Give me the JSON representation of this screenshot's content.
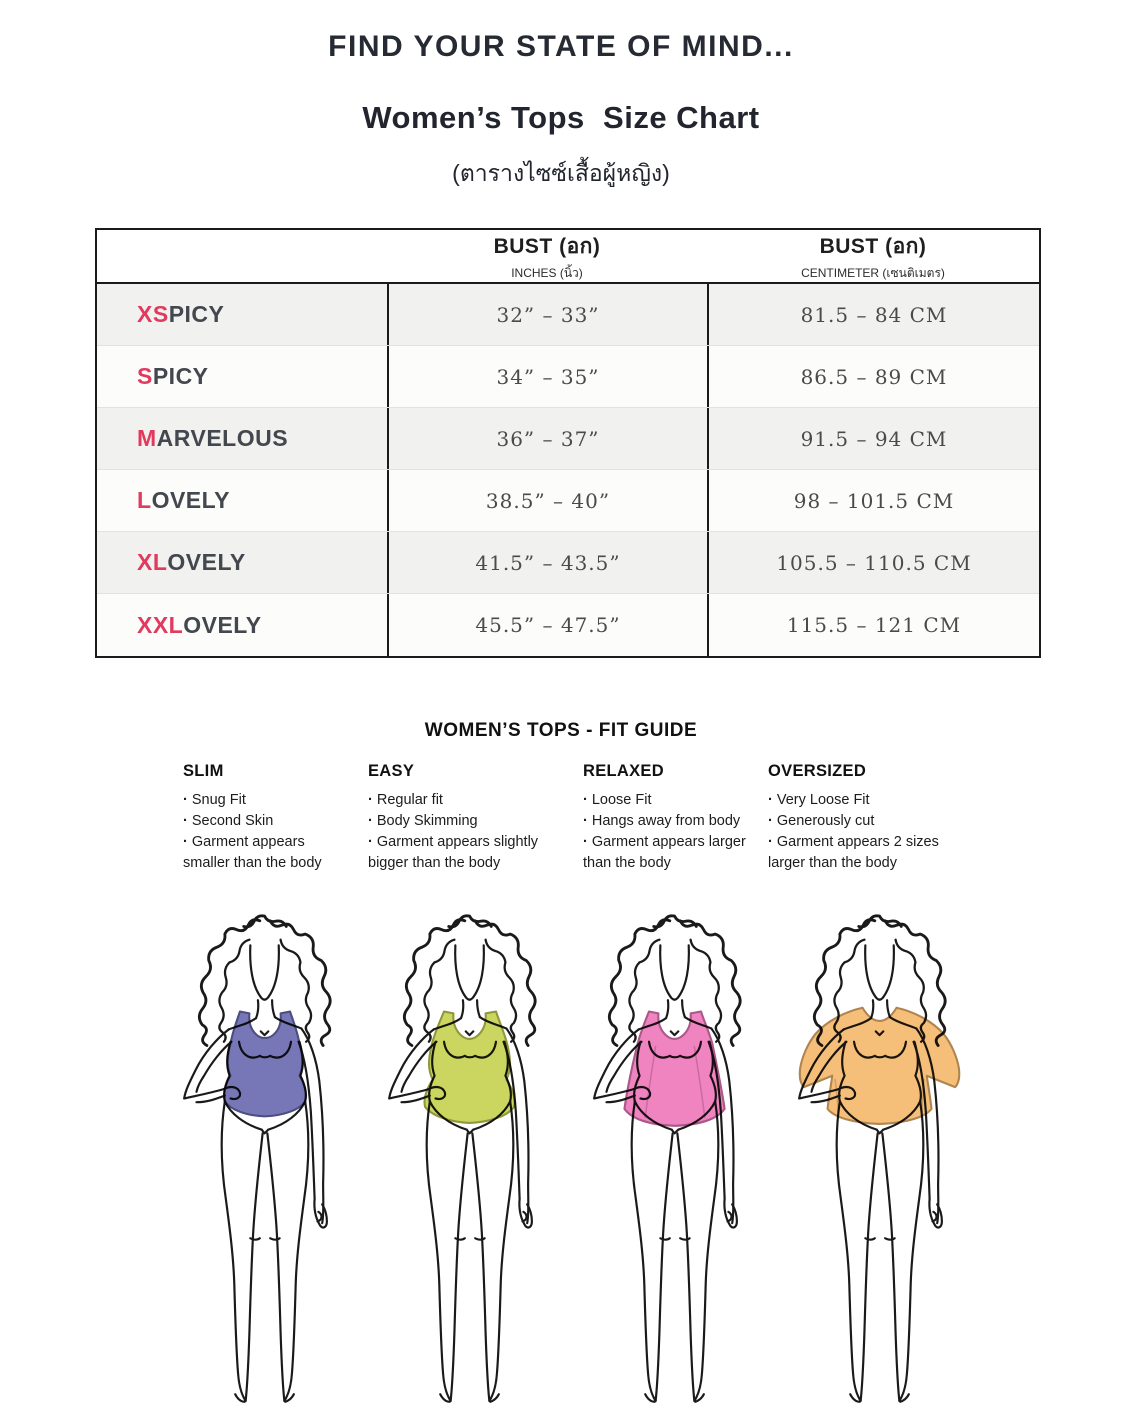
{
  "header": {
    "title": "FIND YOUR STATE OF MIND...",
    "subtitle": "Women’s Tops  Size Chart",
    "subtitle_thai": "(ตารางไซซ์เสื้อผู้หญิง)"
  },
  "size_table": {
    "accent_color": "#e2395e",
    "columns": [
      {
        "title": "BUST (อก)",
        "subtitle": "INCHES (นิ้ว)"
      },
      {
        "title": "BUST (อก)",
        "subtitle": "CENTIMETER (เซนติเมตร)"
      }
    ],
    "rows": [
      {
        "prefix": "XS",
        "rest": "PICY",
        "inches": "32” – 33”",
        "cm": "81.5 – 84 CM"
      },
      {
        "prefix": "S",
        "rest": "PICY",
        "inches": "34” – 35”",
        "cm": "86.5 – 89 CM"
      },
      {
        "prefix": "M",
        "rest": "ARVELOUS",
        "inches": "36” – 37”",
        "cm": "91.5 – 94 CM"
      },
      {
        "prefix": "L",
        "rest": "OVELY",
        "inches": "38.5” – 40”",
        "cm": "98 – 101.5 CM"
      },
      {
        "prefix": "XL",
        "rest": "OVELY",
        "inches": "41.5” – 43.5”",
        "cm": "105.5 – 110.5 CM"
      },
      {
        "prefix": "XXL",
        "rest": "OVELY",
        "inches": "45.5” – 47.5”",
        "cm": "115.5 – 121 CM"
      }
    ]
  },
  "fit_guide": {
    "title": "WOMEN’S TOPS - FIT GUIDE",
    "fits": [
      {
        "name": "SLIM",
        "style": "slim",
        "top_color": "#6b6bb2",
        "bullets": [
          "Snug Fit",
          "Second Skin",
          "Garment appears smaller than the body"
        ]
      },
      {
        "name": "EASY",
        "style": "easy",
        "top_color": "#c6d251",
        "bullets": [
          "Regular fit",
          "Body Skimming",
          "Garment appears slightly bigger than the body"
        ]
      },
      {
        "name": "RELAXED",
        "style": "relaxed",
        "top_color": "#ee79bb",
        "bullets": [
          "Loose Fit",
          "Hangs away from body",
          "Garment appears larger than the body"
        ]
      },
      {
        "name": "OVERSIZED",
        "style": "oversized",
        "top_color": "#f4b86e",
        "bullets": [
          "Very Loose Fit",
          "Generously cut",
          "Garment appears 2 sizes larger than the body"
        ]
      }
    ]
  }
}
